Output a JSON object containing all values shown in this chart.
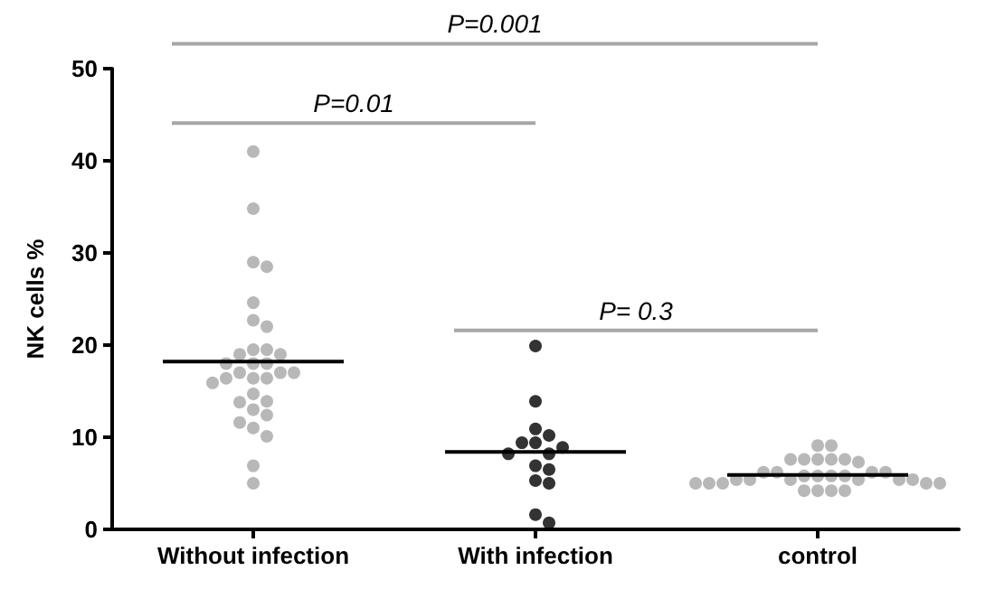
{
  "chart_data": {
    "type": "scatter",
    "ylabel": "NK cells %",
    "categories": [
      "Without infection",
      "With infection",
      "control"
    ],
    "ylim": [
      0,
      50
    ],
    "yticks": [
      0,
      10,
      20,
      30,
      40,
      50
    ],
    "grid": false,
    "marker": "circle",
    "annotations": [
      "P=0.001",
      "P=0.01",
      "P= 0.3"
    ],
    "series": [
      {
        "color": "#a6a6a6",
        "x": [
          "Without infection",
          "Without infection",
          "Without infection",
          "Without infection",
          "Without infection",
          "Without infection",
          "Without infection",
          "Without infection",
          "Without infection",
          "Without infection",
          "Without infection",
          "Without infection",
          "Without infection",
          "Without infection",
          "Without infection",
          "Without infection",
          "Without infection",
          "Without infection",
          "Without infection",
          "Without infection",
          "Without infection",
          "Without infection",
          "Without infection",
          "Without infection",
          "Without infection",
          "Without infection",
          "Without infection",
          "Without infection",
          "Without infection",
          "Without infection",
          "Without infection"
        ],
        "values": [
          41,
          34.8,
          29,
          28.5,
          24.6,
          22.7,
          22,
          19.5,
          19.5,
          19,
          19,
          18,
          18,
          18,
          17,
          17,
          17,
          16.4,
          16.4,
          16.4,
          15.9,
          14.7,
          13.9,
          13.8,
          13,
          12.4,
          11.6,
          11,
          10.1,
          6.9,
          5
        ]
      },
      {
        "color": "#000000",
        "x": [
          "With infection",
          "With infection",
          "With infection",
          "With infection",
          "With infection",
          "With infection",
          "With infection",
          "With infection",
          "With infection",
          "With infection",
          "With infection",
          "With infection",
          "With infection",
          "With infection",
          "With infection"
        ],
        "values": [
          19.9,
          13.9,
          10.9,
          10.2,
          9.4,
          9.4,
          8.9,
          8.2,
          8.2,
          6.9,
          6.5,
          5.3,
          5,
          1.6,
          0.7
        ]
      },
      {
        "color": "#a6a6a6",
        "x": [
          "control",
          "control",
          "control",
          "control",
          "control",
          "control",
          "control",
          "control",
          "control",
          "control",
          "control",
          "control",
          "control",
          "control",
          "control",
          "control",
          "control",
          "control",
          "control",
          "control",
          "control",
          "control",
          "control",
          "control",
          "control",
          "control",
          "control",
          "control",
          "control",
          "control",
          "control"
        ],
        "values": [
          9.1,
          9.1,
          7.6,
          7.6,
          7.6,
          7.6,
          7.6,
          7.3,
          6.2,
          6.2,
          6.2,
          6.2,
          5.8,
          5.8,
          5.8,
          5.8,
          5.4,
          5.4,
          5.4,
          5.4,
          5.4,
          5.4,
          5,
          5,
          5,
          5,
          5,
          4.2,
          4.2,
          4.2,
          4.2
        ]
      },
      {
        "type": "box",
        "color": "#000000",
        "boxes": [
          {
            "low": 18.2,
            "q1": 18.2,
            "median": 18.2,
            "q3": 18.2,
            "high": 18.2
          },
          {
            "low": 8.4,
            "q1": 8.4,
            "median": 8.4,
            "q3": 8.4,
            "high": 8.4
          },
          {
            "low": 5.9,
            "q1": 5.9,
            "median": 5.9,
            "q3": 5.9,
            "high": 5.9
          }
        ]
      }
    ]
  }
}
